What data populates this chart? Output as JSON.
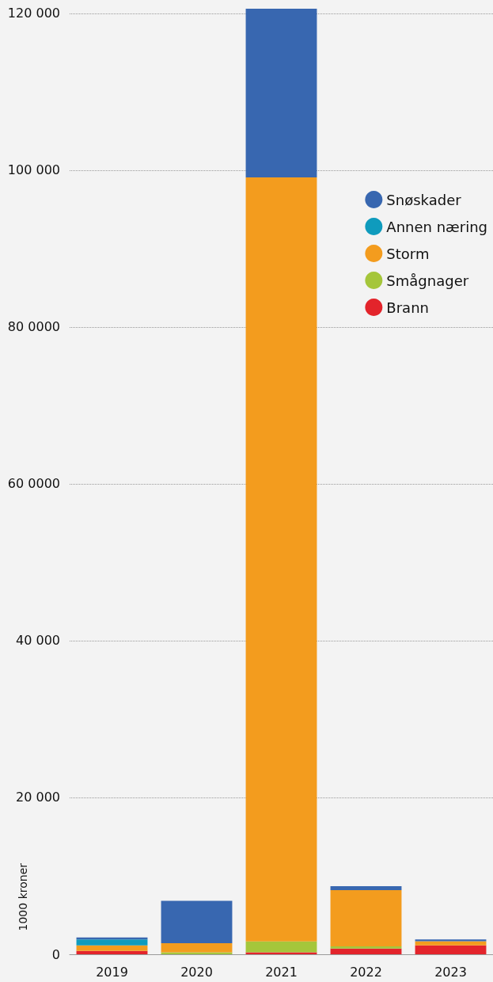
{
  "chart_data": {
    "type": "bar",
    "stacked": true,
    "ylabel": "1000 kroner",
    "categories": [
      "2019",
      "2020",
      "2021",
      "2022",
      "2023"
    ],
    "series": [
      {
        "name": "Brann",
        "color": "#e3242b",
        "values": [
          440,
          0,
          240,
          730,
          1130
        ]
      },
      {
        "name": "Smågnager",
        "color": "#a5c63b",
        "values": [
          0,
          240,
          1410,
          280,
          0
        ]
      },
      {
        "name": "Storm",
        "color": "#f39c1e",
        "values": [
          690,
          1170,
          97440,
          7170,
          530
        ]
      },
      {
        "name": "Annen næring",
        "color": "#0f9bbd",
        "values": [
          770,
          0,
          0,
          0,
          0
        ]
      },
      {
        "name": "Snøskader",
        "color": "#3867b0",
        "values": [
          240,
          5410,
          21510,
          500,
          240
        ]
      }
    ],
    "ylim": [
      0,
      121000
    ],
    "yticks": [
      0,
      {
        "value": 20000,
        "label": "20 000"
      },
      {
        "value": 40000,
        "label": "40 000"
      },
      {
        "value": 60000,
        "label": "60 0000"
      },
      {
        "value": 80000,
        "label": "80 0000"
      },
      {
        "value": 100000,
        "label": "100 000"
      },
      {
        "value": 120000,
        "label": "120 000"
      }
    ],
    "grid": "y",
    "legend": "right"
  }
}
